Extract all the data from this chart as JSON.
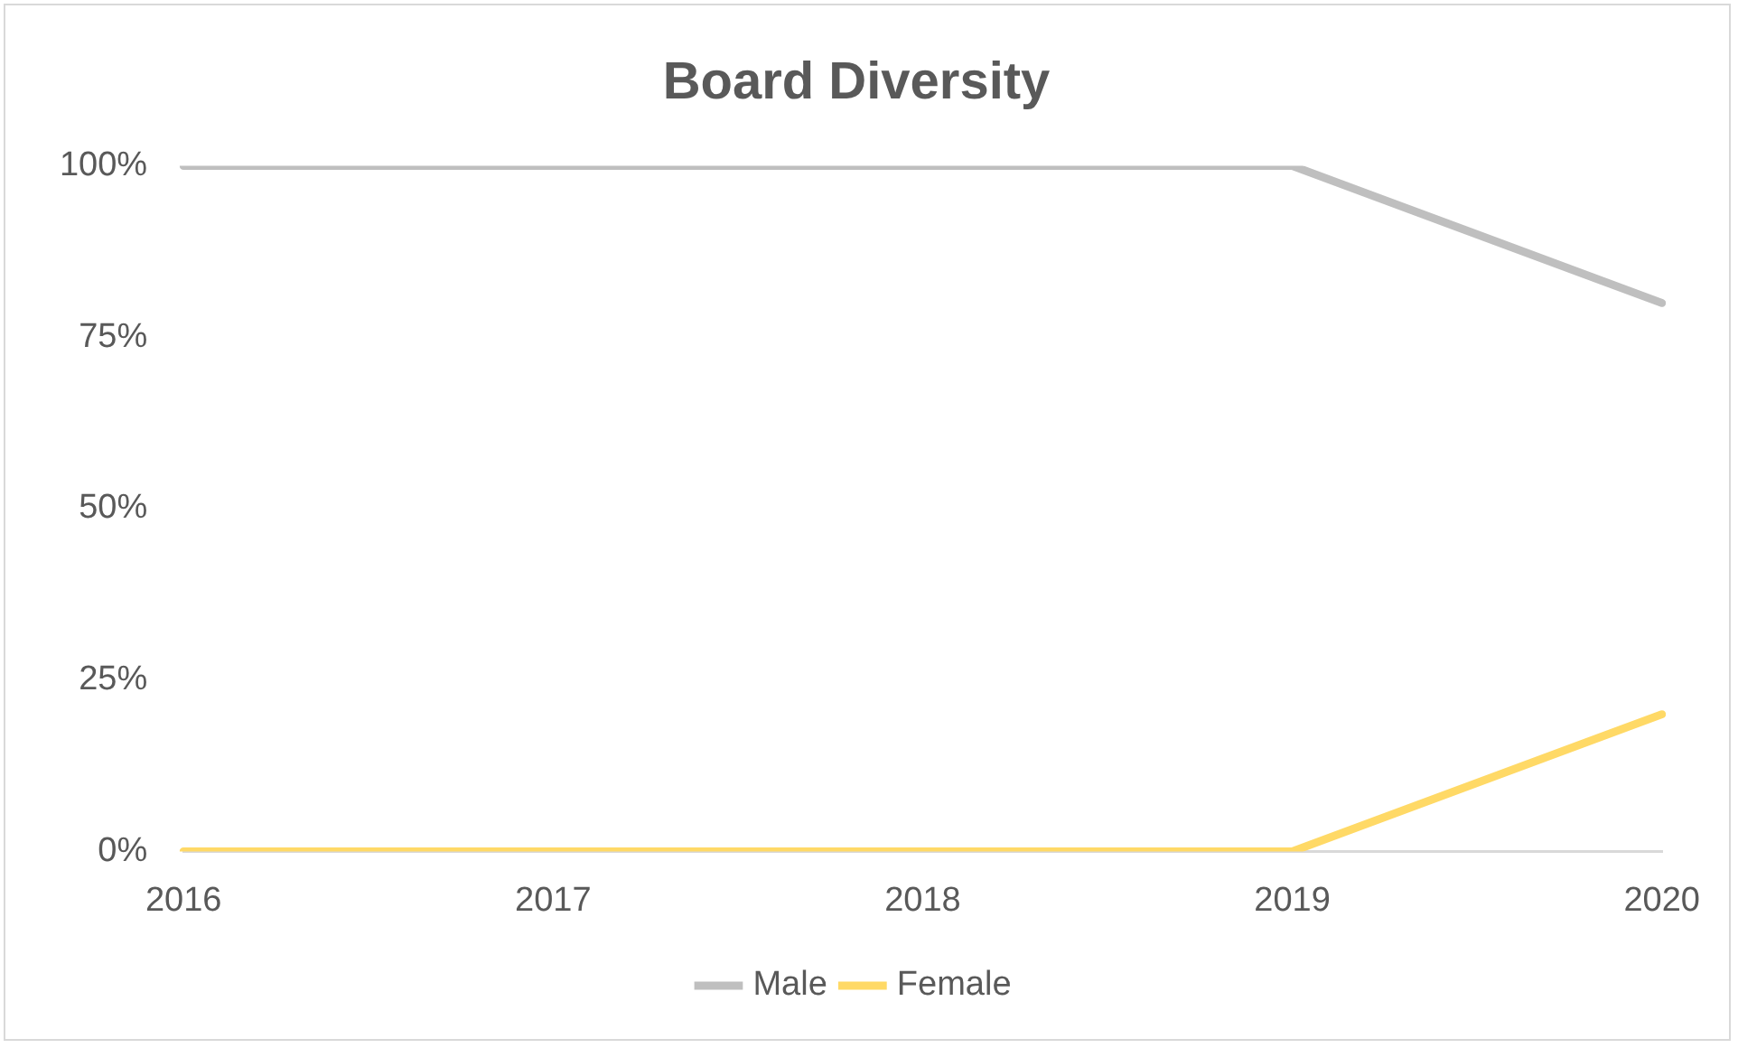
{
  "chart_data": {
    "type": "line",
    "title": "Board Diversity",
    "categories": [
      "2016",
      "2017",
      "2018",
      "2019",
      "2020"
    ],
    "series": [
      {
        "name": "Male",
        "color": "#bfbfbf",
        "values": [
          100,
          100,
          100,
          100,
          80
        ]
      },
      {
        "name": "Female",
        "color": "#ffd966",
        "values": [
          0,
          0,
          0,
          0,
          20
        ]
      }
    ],
    "ylim": [
      0,
      100
    ],
    "yticks": [
      {
        "value": 0,
        "label": "0%"
      },
      {
        "value": 25,
        "label": "25%"
      },
      {
        "value": 50,
        "label": "50%"
      },
      {
        "value": 75,
        "label": "75%"
      },
      {
        "value": 100,
        "label": "100%"
      }
    ],
    "grid": false,
    "legend": "bottom",
    "marker": "none",
    "line_style": "solid"
  }
}
